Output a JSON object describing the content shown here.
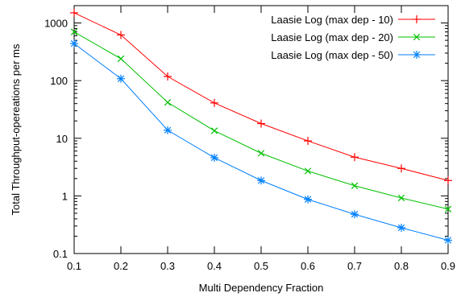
{
  "chart_data": {
    "type": "line",
    "title": "",
    "xlabel": "Multi Dependency Fraction",
    "ylabel": "Total Throughput-opereations per ms",
    "x": [
      0.1,
      0.2,
      0.3,
      0.4,
      0.5,
      0.6,
      0.7,
      0.8,
      0.9
    ],
    "xlim": [
      0.1,
      0.9
    ],
    "ylim": [
      0.1,
      2000
    ],
    "yscale": "log",
    "grid": false,
    "legend_position": "top-right",
    "x_ticks": [
      "0.1",
      "0.2",
      "0.3",
      "0.4",
      "0.5",
      "0.6",
      "0.7",
      "0.8",
      "0.9"
    ],
    "y_ticks": [
      {
        "value": 0.1,
        "label": "0.1"
      },
      {
        "value": 1,
        "label": "1"
      },
      {
        "value": 10,
        "label": "10"
      },
      {
        "value": 100,
        "label": "100"
      },
      {
        "value": 1000,
        "label": "1000"
      }
    ],
    "series": [
      {
        "name": "Laasie Log (max dep - 10)",
        "color": "#ff0000",
        "marker": "plus",
        "values": [
          1500,
          620,
          118,
          41,
          18,
          9,
          4.7,
          3.0,
          1.85
        ]
      },
      {
        "name": "Laasie Log (max dep - 20)",
        "color": "#00c000",
        "marker": "cross",
        "values": [
          700,
          240,
          42,
          13.5,
          5.5,
          2.7,
          1.5,
          0.92,
          0.59
        ]
      },
      {
        "name": "Laasie Log (max dep - 50)",
        "color": "#0080ff",
        "marker": "star",
        "values": [
          440,
          108,
          13.8,
          4.6,
          1.85,
          0.87,
          0.48,
          0.28,
          0.17
        ]
      }
    ]
  }
}
